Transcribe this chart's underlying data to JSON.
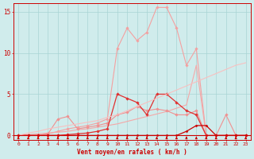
{
  "x": [
    0,
    1,
    2,
    3,
    4,
    5,
    6,
    7,
    8,
    9,
    10,
    11,
    12,
    13,
    14,
    15,
    16,
    17,
    18,
    19,
    20,
    21,
    22,
    23
  ],
  "lines": [
    {
      "color": "#f4a0a0",
      "lw": 0.8,
      "marker": "D",
      "ms": 1.8,
      "y": [
        0,
        0,
        0,
        0.2,
        0.5,
        0.8,
        1.0,
        1.2,
        1.5,
        2.0,
        10.5,
        13.0,
        11.5,
        12.5,
        15.5,
        15.5,
        13.0,
        8.5,
        10.5,
        0,
        0,
        0,
        0,
        0
      ]
    },
    {
      "color": "#f4a8a8",
      "lw": 0.8,
      "marker": null,
      "ms": 0,
      "y": [
        0,
        0.1,
        0.2,
        0.3,
        0.4,
        0.5,
        0.7,
        0.8,
        1.0,
        1.2,
        1.4,
        1.7,
        2.0,
        2.3,
        2.6,
        2.9,
        3.3,
        3.7,
        8.5,
        0,
        0,
        0,
        0,
        0
      ]
    },
    {
      "color": "#f09090",
      "lw": 0.8,
      "marker": "D",
      "ms": 1.8,
      "y": [
        0,
        0,
        0,
        0.2,
        2.0,
        2.3,
        0.8,
        1.0,
        1.2,
        1.5,
        2.5,
        2.8,
        3.5,
        3.0,
        3.2,
        3.0,
        2.5,
        2.5,
        3.0,
        0,
        0,
        2.5,
        0,
        0
      ]
    },
    {
      "color": "#e03030",
      "lw": 0.9,
      "marker": "D",
      "ms": 1.8,
      "y": [
        0,
        0,
        0,
        0,
        0,
        0.1,
        0.2,
        0.3,
        0.5,
        0.8,
        5.0,
        4.5,
        4.0,
        2.5,
        5.0,
        5.0,
        4.0,
        3.0,
        2.5,
        0,
        0,
        0,
        0,
        0
      ]
    },
    {
      "color": "#cc0000",
      "lw": 0.9,
      "marker": "D",
      "ms": 1.5,
      "y": [
        0,
        0,
        0,
        0,
        0,
        0,
        0,
        0,
        0,
        0,
        0,
        0,
        0,
        0,
        0,
        0,
        0,
        0.5,
        1.2,
        1.2,
        0,
        0,
        0,
        0
      ]
    },
    {
      "color": "#f8c0c0",
      "lw": 0.8,
      "marker": null,
      "ms": 0,
      "y": [
        0,
        0.3,
        0.5,
        0.8,
        1.0,
        1.2,
        1.4,
        1.6,
        1.8,
        2.2,
        2.5,
        3.0,
        3.5,
        4.0,
        4.5,
        5.0,
        5.5,
        6.0,
        6.5,
        7.0,
        7.5,
        8.0,
        8.5,
        8.8
      ]
    }
  ],
  "ylim": [
    0,
    16
  ],
  "yticks": [
    0,
    5,
    10,
    15
  ],
  "xticks": [
    0,
    1,
    2,
    3,
    4,
    5,
    6,
    7,
    8,
    9,
    10,
    11,
    12,
    13,
    14,
    15,
    16,
    17,
    18,
    19,
    20,
    21,
    22,
    23
  ],
  "xlabel": "Vent moyen/en rafales ( km/h )",
  "bg_color": "#d0ecec",
  "grid_color": "#a8d4d4",
  "tick_color": "#cc0000",
  "label_color": "#cc0000",
  "arrow_color": "#cc0000"
}
